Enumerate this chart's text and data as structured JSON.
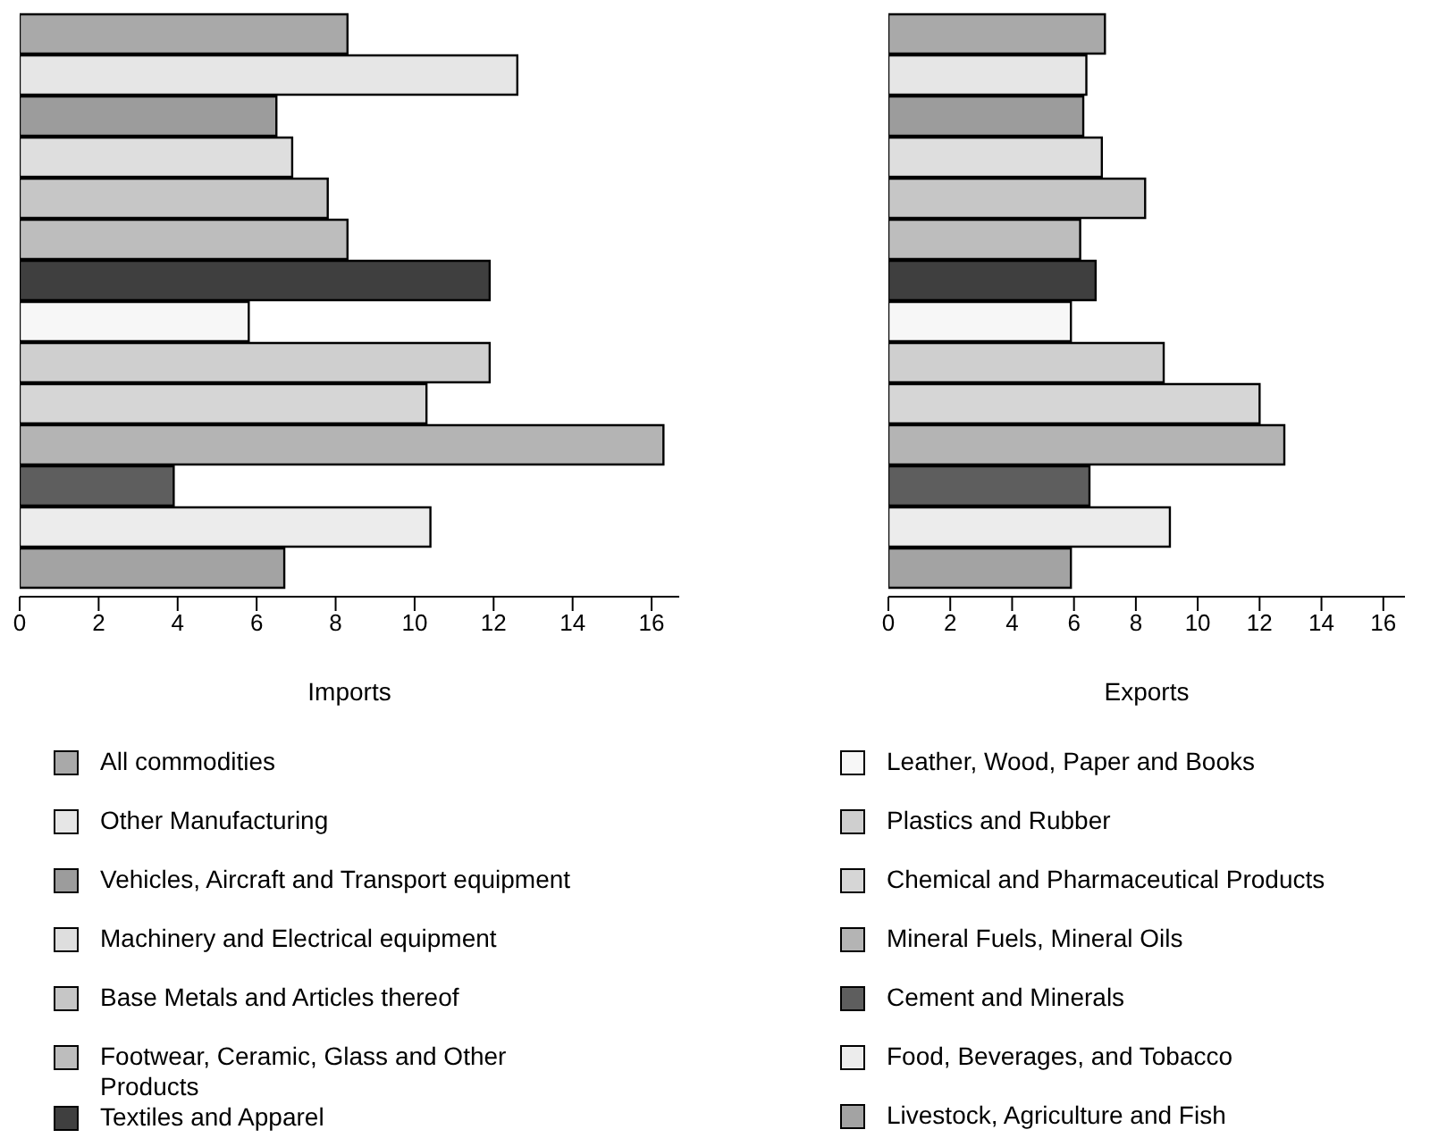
{
  "chart_data": [
    {
      "type": "bar",
      "orientation": "horizontal",
      "xlabel": "Imports",
      "categories": [
        null
      ],
      "xlim": [
        0,
        16.7
      ],
      "xticks": [
        0,
        2,
        4,
        6,
        8,
        10,
        12,
        14,
        16
      ],
      "tick_labels": "x",
      "legend": "bottom",
      "series": [
        {
          "name": "All commodities",
          "color": "#a9a9a9",
          "values": [
            8.3
          ]
        },
        {
          "name": "Other Manufacturing",
          "color": "#e6e6e6",
          "values": [
            12.6
          ]
        },
        {
          "name": "Vehicles, Aircraft and Transport equipment",
          "color": "#9c9c9c",
          "values": [
            6.5
          ]
        },
        {
          "name": "Machinery and Electrical equipment",
          "color": "#dedede",
          "values": [
            6.9
          ]
        },
        {
          "name": "Base Metals and Articles thereof",
          "color": "#c6c6c6",
          "values": [
            7.8
          ]
        },
        {
          "name": "Footwear, Ceramic, Glass and Other Products",
          "color": "#bdbdbd",
          "values": [
            8.3
          ]
        },
        {
          "name": "Textiles and Apparel",
          "color": "#3f3f3f",
          "values": [
            11.9
          ]
        },
        {
          "name": "Leather, Wood, Paper and Books",
          "color": "#f7f7f7",
          "values": [
            5.8
          ]
        },
        {
          "name": "Plastics and Rubber",
          "color": "#cfcfcf",
          "values": [
            11.9
          ]
        },
        {
          "name": "Chemical and Pharmaceutical Products",
          "color": "#d6d6d6",
          "values": [
            10.3
          ]
        },
        {
          "name": "Mineral Fuels, Mineral Oils",
          "color": "#b4b4b4",
          "values": [
            16.3
          ]
        },
        {
          "name": "Cement and Minerals",
          "color": "#5e5e5e",
          "values": [
            3.9
          ]
        },
        {
          "name": "Food, Beverages, and Tobacco",
          "color": "#ececec",
          "values": [
            10.4
          ]
        },
        {
          "name": "Livestock, Agriculture and Fish",
          "color": "#a3a3a3",
          "values": [
            6.7
          ]
        }
      ]
    },
    {
      "type": "bar",
      "orientation": "horizontal",
      "xlabel": "Exports",
      "categories": [
        null
      ],
      "xlim": [
        0,
        16.7
      ],
      "xticks": [
        0,
        2,
        4,
        6,
        8,
        10,
        12,
        14,
        16
      ],
      "tick_labels": "x",
      "series": [
        {
          "color": "#a9a9a9",
          "values": [
            7.0
          ]
        },
        {
          "color": "#e6e6e6",
          "values": [
            6.4
          ]
        },
        {
          "color": "#9c9c9c",
          "values": [
            6.3
          ]
        },
        {
          "color": "#dedede",
          "values": [
            6.9
          ]
        },
        {
          "color": "#c6c6c6",
          "values": [
            8.3
          ]
        },
        {
          "color": "#bdbdbd",
          "values": [
            6.2
          ]
        },
        {
          "color": "#3f3f3f",
          "values": [
            6.7
          ]
        },
        {
          "color": "#f7f7f7",
          "values": [
            5.9
          ]
        },
        {
          "color": "#cfcfcf",
          "values": [
            8.9
          ]
        },
        {
          "color": "#d6d6d6",
          "values": [
            12.0
          ]
        },
        {
          "color": "#b4b4b4",
          "values": [
            12.8
          ]
        },
        {
          "color": "#5e5e5e",
          "values": [
            6.5
          ]
        },
        {
          "color": "#ececec",
          "values": [
            9.1
          ]
        },
        {
          "color": "#a3a3a3",
          "values": [
            5.9
          ]
        }
      ]
    }
  ]
}
